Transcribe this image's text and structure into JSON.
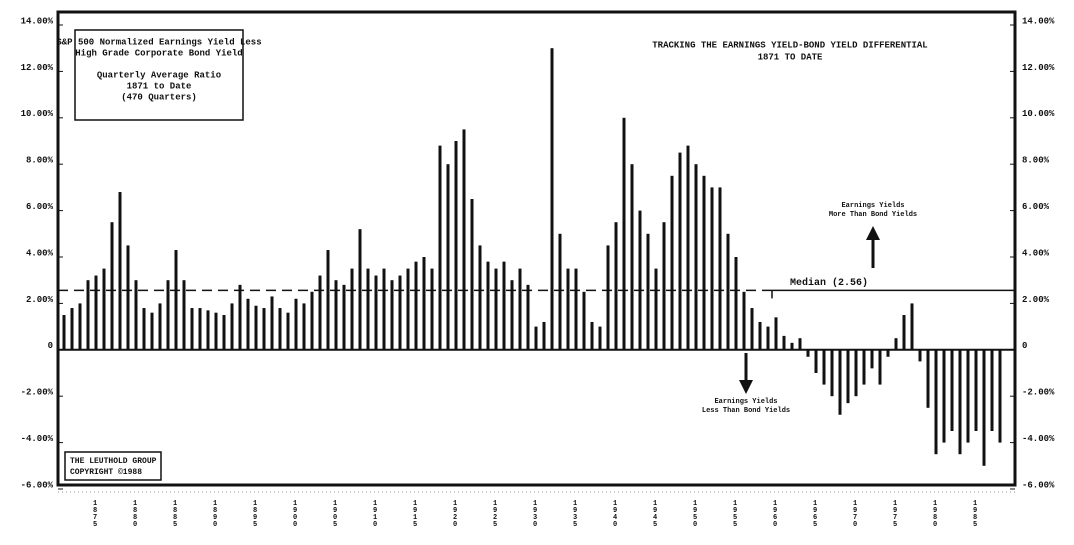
{
  "chart_data": {
    "type": "bar",
    "title": [
      "TRACKING THE EARNINGS YIELD-BOND YIELD DIFFERENTIAL",
      "1871 TO DATE"
    ],
    "subtitle": [
      "S&P 500 Normalized Earnings Yield Less",
      "High Grade Corporate Bond Yield",
      "Quarterly Average Ratio",
      "1871 to Date",
      "(470 Quarters)"
    ],
    "annotations": {
      "above": [
        "Earnings Yields",
        "More Than Bond Yields"
      ],
      "below": [
        "Earnings Yields",
        "Less Than Bond Yields"
      ],
      "credit": [
        "THE LEUTHOLD GROUP",
        "COPYRIGHT  ©1988"
      ]
    },
    "median": 2.56,
    "median_label": "Median (2.56)",
    "color": "#111111",
    "categories": [
      null,
      null,
      null,
      null,
      "1875",
      null,
      null,
      null,
      null,
      "1880",
      null,
      null,
      null,
      null,
      "1885",
      null,
      null,
      null,
      null,
      "1890",
      null,
      null,
      null,
      null,
      "1895",
      null,
      null,
      null,
      null,
      "1900",
      null,
      null,
      null,
      null,
      "1905",
      null,
      null,
      null,
      null,
      "1910",
      null,
      null,
      null,
      null,
      "1915",
      null,
      null,
      null,
      null,
      "1920",
      null,
      null,
      null,
      null,
      "1925",
      null,
      null,
      null,
      null,
      "1930",
      null,
      null,
      null,
      null,
      "1935",
      null,
      null,
      null,
      null,
      "1940",
      null,
      null,
      null,
      null,
      "1945",
      null,
      null,
      null,
      null,
      "1950",
      null,
      null,
      null,
      null,
      "1955",
      null,
      null,
      null,
      null,
      "1960",
      null,
      null,
      null,
      null,
      "1965",
      null,
      null,
      null,
      null,
      "1970",
      null,
      null,
      null,
      null,
      "1975",
      null,
      null,
      null,
      null,
      "1980",
      null,
      null,
      null,
      null,
      "1985",
      null,
      null,
      null
    ],
    "values": [
      1.5,
      1.8,
      2.0,
      3.0,
      3.2,
      3.5,
      5.5,
      6.8,
      4.5,
      3.0,
      1.8,
      1.6,
      2.0,
      3.0,
      4.3,
      3.0,
      1.8,
      1.8,
      1.7,
      1.6,
      1.5,
      2.0,
      2.8,
      2.2,
      1.9,
      1.8,
      2.3,
      1.8,
      1.6,
      2.2,
      2.0,
      2.5,
      3.2,
      4.3,
      3.0,
      2.8,
      3.5,
      5.2,
      3.5,
      3.2,
      3.5,
      3.0,
      3.2,
      3.5,
      3.8,
      4.0,
      3.5,
      8.8,
      8.0,
      9.0,
      9.5,
      6.5,
      4.5,
      3.8,
      3.5,
      3.8,
      3.0,
      3.5,
      2.8,
      1.0,
      1.2,
      13.0,
      5.0,
      3.5,
      3.5,
      2.5,
      1.2,
      1.0,
      4.5,
      5.5,
      10.0,
      8.0,
      6.0,
      5.0,
      3.5,
      5.5,
      7.5,
      8.5,
      8.8,
      8.0,
      7.5,
      7.0,
      7.0,
      5.0,
      4.0,
      2.5,
      1.8,
      1.2,
      1.0,
      1.4,
      0.6,
      0.3,
      0.5,
      -0.3,
      -1.0,
      -1.5,
      -2.0,
      -2.8,
      -2.3,
      -2.0,
      -1.5,
      -0.8,
      -1.5,
      -0.3,
      0.5,
      1.5,
      2.0,
      -0.5,
      -2.5,
      -4.5,
      -4.0,
      -3.5,
      -4.5,
      -4.0,
      -3.5,
      -5.0,
      -3.5,
      -4.0
    ],
    "ylim": [
      -6,
      14
    ],
    "yticks": [
      {
        "value": -6,
        "label": "-6.00%"
      },
      {
        "value": -4,
        "label": "-4.00%"
      },
      {
        "value": -2,
        "label": "-2.00%"
      },
      0,
      {
        "value": 2,
        "label": "2.00%"
      },
      {
        "value": 4,
        "label": "4.00%"
      },
      {
        "value": 6,
        "label": "6.00%"
      },
      {
        "value": 8,
        "label": "8.00%"
      },
      {
        "value": 10,
        "label": "10.00%"
      },
      {
        "value": 12,
        "label": "12.00%"
      },
      {
        "value": 14,
        "label": "14.00%"
      }
    ]
  }
}
